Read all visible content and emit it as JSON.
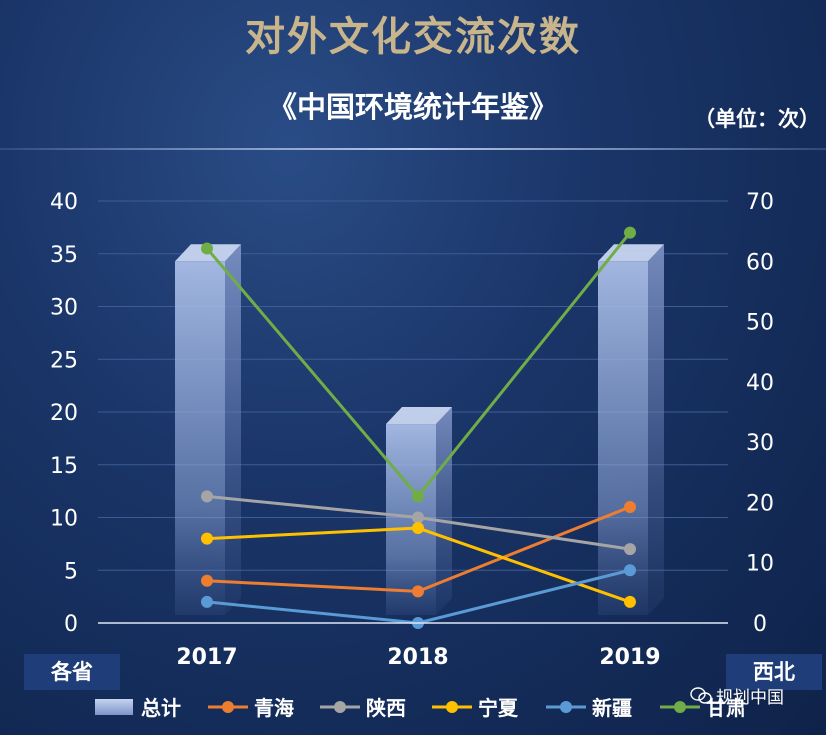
{
  "header": {
    "title": "对外文化交流次数",
    "subtitle": "《中国环境统计年鉴》",
    "unit": "（单位：次）"
  },
  "tags": {
    "left": "各省",
    "right": "西北"
  },
  "watermark": {
    "text": "规划中国",
    "icon": "wechat-icon"
  },
  "colors": {
    "total": "#a9bde6",
    "qinghai": "#ed7d31",
    "shaanxi": "#a5a5a5",
    "ningxia": "#ffc000",
    "xinjiang": "#5b9bd5",
    "gansu": "#70ad47"
  },
  "chart_data": {
    "type": "bar",
    "categories": [
      "2017",
      "2018",
      "2019"
    ],
    "left_axis": {
      "ylim": [
        0,
        40
      ],
      "ticks": [
        "0",
        "5",
        "10",
        "15",
        "20",
        "25",
        "30",
        "35",
        "40"
      ]
    },
    "right_axis": {
      "ylim": [
        0,
        70
      ],
      "ticks": [
        "0",
        "10",
        "20",
        "30",
        "40",
        "50",
        "60",
        "70"
      ]
    },
    "grid": true,
    "legend_position": "bottom",
    "series": [
      {
        "name": "总计",
        "kind": "bar",
        "axis": "right",
        "color": "#a9bde6",
        "values": [
          60,
          33,
          60
        ]
      },
      {
        "name": "青海",
        "kind": "line",
        "axis": "left",
        "color": "#ed7d31",
        "values": [
          4,
          3,
          11
        ]
      },
      {
        "name": "陕西",
        "kind": "line",
        "axis": "left",
        "color": "#a5a5a5",
        "values": [
          12,
          10,
          7
        ]
      },
      {
        "name": "宁夏",
        "kind": "line",
        "axis": "left",
        "color": "#ffc000",
        "values": [
          8,
          9,
          2
        ]
      },
      {
        "name": "新疆",
        "kind": "line",
        "axis": "left",
        "color": "#5b9bd5",
        "values": [
          2,
          0,
          5
        ]
      },
      {
        "name": "甘肃",
        "kind": "line",
        "axis": "left",
        "color": "#70ad47",
        "values": [
          35.5,
          12,
          37
        ]
      }
    ]
  }
}
